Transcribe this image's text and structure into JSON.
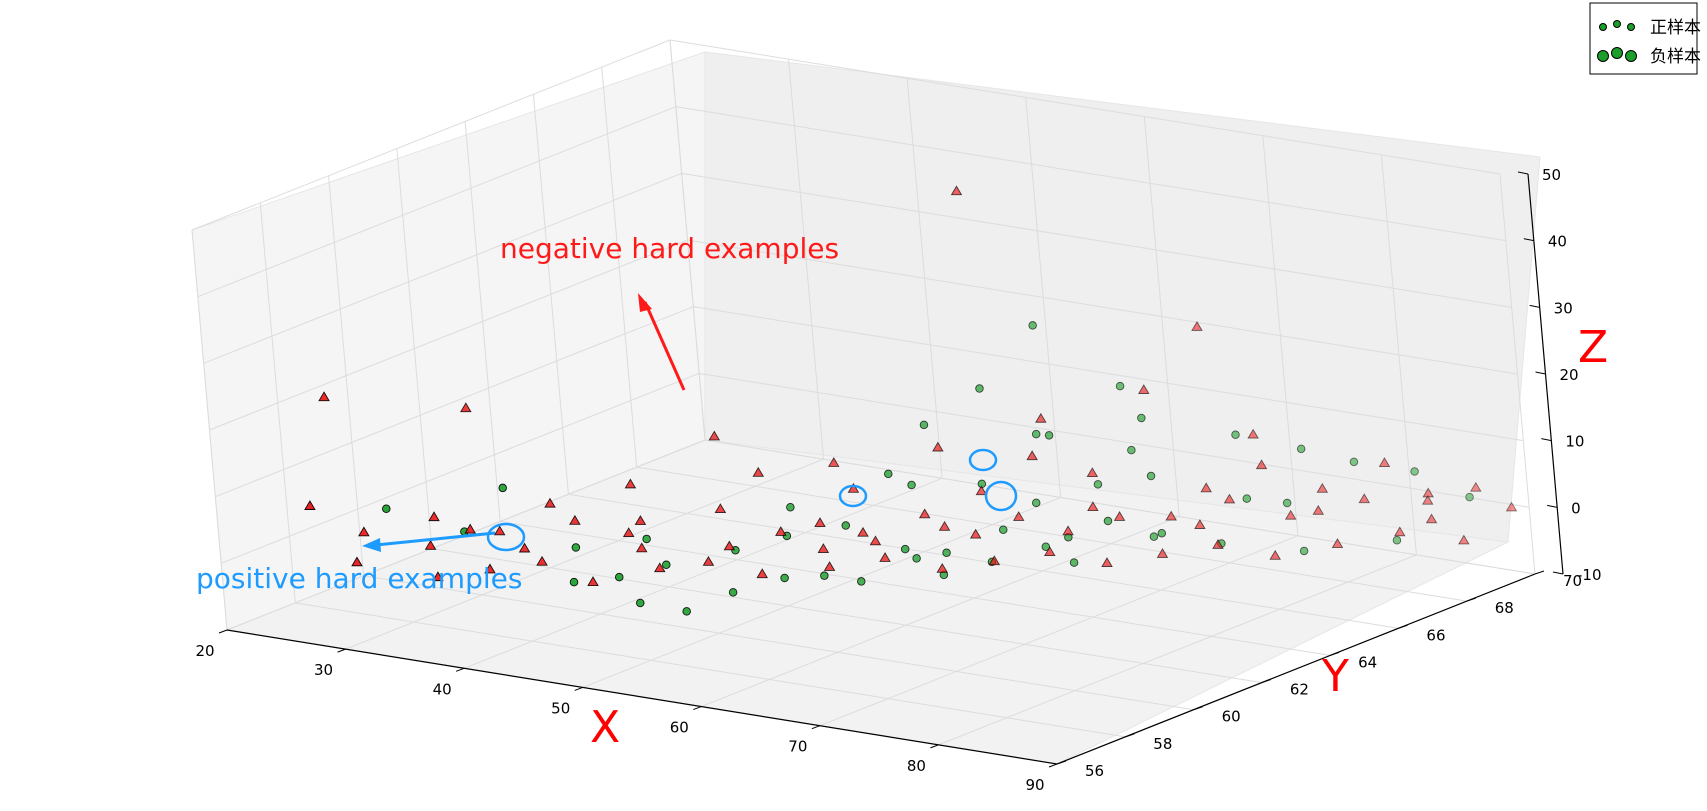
{
  "chart_data": {
    "type": "scatter",
    "projection": "3d",
    "x_ticks": [
      "20",
      "30",
      "40",
      "50",
      "60",
      "70",
      "80",
      "90"
    ],
    "y_ticks": [
      "56",
      "58",
      "60",
      "62",
      "64",
      "66",
      "68",
      "70"
    ],
    "z_ticks": [
      "-10",
      "0",
      "10",
      "20",
      "30",
      "40",
      "50"
    ],
    "xlabel": "X",
    "ylabel": "Y",
    "zlabel": "Z",
    "xlim": [
      20,
      90
    ],
    "ylim": [
      56,
      70
    ],
    "zlim": [
      -10,
      50
    ],
    "grid": true,
    "legend": {
      "position": "top-right",
      "entries": [
        {
          "label": "正样本",
          "marker": "small-circles"
        },
        {
          "label": "负样本",
          "marker": "large-circles"
        }
      ]
    },
    "annotations": [
      {
        "text": "negative hard examples",
        "color": "#ff1a1a"
      },
      {
        "text": "positive hard examples",
        "color": "#1e9bff"
      }
    ],
    "colors": {
      "positive": "#1b9e2b",
      "negative": "#e81818",
      "highlight": "#1e9bff"
    },
    "series": [
      {
        "marker": "circle",
        "color": "#1b9e2b",
        "points": [
          [
            38,
            58.2,
            12
          ],
          [
            30,
            57.5,
            8
          ],
          [
            35,
            58,
            5
          ],
          [
            42,
            58.8,
            3
          ],
          [
            46,
            59.5,
            4
          ],
          [
            52,
            60,
            3
          ],
          [
            49,
            59,
            2
          ],
          [
            55,
            60.5,
            5
          ],
          [
            58,
            61.2,
            6
          ],
          [
            62,
            61.5,
            3
          ],
          [
            64,
            62,
            2
          ],
          [
            66,
            63,
            4
          ],
          [
            70,
            63.5,
            3
          ],
          [
            72,
            64,
            5
          ],
          [
            60,
            63,
            18
          ],
          [
            62,
            64,
            22
          ],
          [
            64,
            65,
            30
          ],
          [
            65,
            64.5,
            15
          ],
          [
            68,
            66,
            20
          ],
          [
            70,
            65.5,
            12
          ],
          [
            63,
            63.5,
            9
          ],
          [
            66,
            64,
            6
          ],
          [
            69,
            64.8,
            8
          ],
          [
            73,
            65,
            10
          ],
          [
            76,
            66.5,
            14
          ],
          [
            80,
            67,
            12
          ],
          [
            78,
            66,
            6
          ],
          [
            82,
            67.8,
            9
          ],
          [
            85,
            68.5,
            7
          ],
          [
            75,
            64.5,
            3
          ],
          [
            56,
            60,
            0
          ],
          [
            53,
            59.5,
            -2
          ],
          [
            51,
            58.8,
            -4
          ],
          [
            57,
            60.8,
            -1
          ],
          [
            62,
            61.8,
            1
          ],
          [
            66,
            62.6,
            0
          ],
          [
            70,
            63.6,
            -1
          ],
          [
            74,
            64.6,
            2
          ],
          [
            48,
            58.5,
            -3
          ],
          [
            44,
            58,
            0
          ],
          [
            60,
            62.5,
            10
          ],
          [
            67,
            64.2,
            16
          ],
          [
            54,
            61,
            8
          ],
          [
            59,
            62.2,
            12
          ],
          [
            72,
            65.2,
            18
          ],
          [
            79,
            66.8,
            4
          ],
          [
            88,
            69,
            3
          ],
          [
            86,
            67.5,
            -1
          ],
          [
            47,
            58.3,
            1
          ],
          [
            58,
            61.5,
            -3
          ],
          [
            63,
            62.2,
            -2
          ],
          [
            68,
            63.5,
            1
          ],
          [
            77,
            65.5,
            0
          ],
          [
            81,
            66.5,
            -2
          ]
        ]
      },
      {
        "marker": "triangle",
        "color": "#e81818",
        "points": [
          [
            25,
            57,
            8
          ],
          [
            27,
            57.8,
            3
          ],
          [
            32,
            58,
            2
          ],
          [
            34,
            58.5,
            4
          ],
          [
            37,
            59,
            1
          ],
          [
            40,
            59.5,
            5
          ],
          [
            43,
            60,
            3
          ],
          [
            45,
            59.7,
            6
          ],
          [
            50,
            60.5,
            2
          ],
          [
            53,
            61,
            4
          ],
          [
            55,
            61.5,
            1
          ],
          [
            57,
            62,
            3
          ],
          [
            60,
            62.8,
            5
          ],
          [
            63,
            63.2,
            2
          ],
          [
            65,
            63.8,
            4
          ],
          [
            67,
            64.5,
            1
          ],
          [
            70,
            65,
            3
          ],
          [
            72,
            65.8,
            2
          ],
          [
            75,
            66.5,
            4
          ],
          [
            78,
            67.2,
            1
          ],
          [
            82,
            68,
            3
          ],
          [
            85,
            68.8,
            2
          ],
          [
            88,
            69.2,
            4
          ],
          [
            90,
            69.5,
            1
          ],
          [
            28,
            57.2,
            0
          ],
          [
            33,
            57.8,
            -2
          ],
          [
            36,
            58.3,
            -1
          ],
          [
            39,
            58.8,
            0
          ],
          [
            42,
            59.2,
            -3
          ],
          [
            46,
            59.8,
            -1
          ],
          [
            49,
            60.2,
            0
          ],
          [
            52,
            60.7,
            -2
          ],
          [
            56,
            61.3,
            -1
          ],
          [
            59,
            61.9,
            0
          ],
          [
            62,
            62.5,
            -2
          ],
          [
            65,
            63,
            -1
          ],
          [
            68,
            63.6,
            0
          ],
          [
            71,
            64.2,
            -2
          ],
          [
            74,
            64.8,
            -1
          ],
          [
            77,
            65.4,
            0
          ],
          [
            80,
            66,
            -2
          ],
          [
            83,
            66.8,
            -1
          ],
          [
            86,
            67.6,
            0
          ],
          [
            89,
            68.4,
            -2
          ],
          [
            24,
            58,
            22
          ],
          [
            30,
            60,
            18
          ],
          [
            45,
            62,
            14
          ],
          [
            52,
            63,
            10
          ],
          [
            58,
            64,
            12
          ],
          [
            64,
            65,
            16
          ],
          [
            70,
            66,
            20
          ],
          [
            76,
            67,
            13
          ],
          [
            84,
            68,
            9
          ],
          [
            60,
            64.5,
            50
          ],
          [
            72,
            67,
            28
          ],
          [
            48,
            61,
            6
          ],
          [
            55,
            62.5,
            8
          ],
          [
            62,
            63.8,
            7
          ],
          [
            68,
            65,
            9
          ],
          [
            74,
            66.2,
            6
          ],
          [
            80,
            67.5,
            5
          ],
          [
            86,
            68.5,
            4
          ],
          [
            38,
            59.5,
            7
          ],
          [
            42,
            60.5,
            9
          ],
          [
            35,
            59,
            3
          ],
          [
            31,
            58.5,
            5
          ],
          [
            50,
            61.5,
            11
          ],
          [
            66,
            64,
            13
          ],
          [
            78,
            66.5,
            10
          ],
          [
            58,
            62,
            2
          ],
          [
            44,
            60,
            1
          ],
          [
            54,
            61.8,
            4
          ],
          [
            61,
            63,
            3
          ],
          [
            69,
            64.6,
            5
          ],
          [
            75,
            65.6,
            2
          ],
          [
            81,
            67,
            3
          ],
          [
            87,
            68.2,
            1
          ]
        ]
      }
    ]
  }
}
